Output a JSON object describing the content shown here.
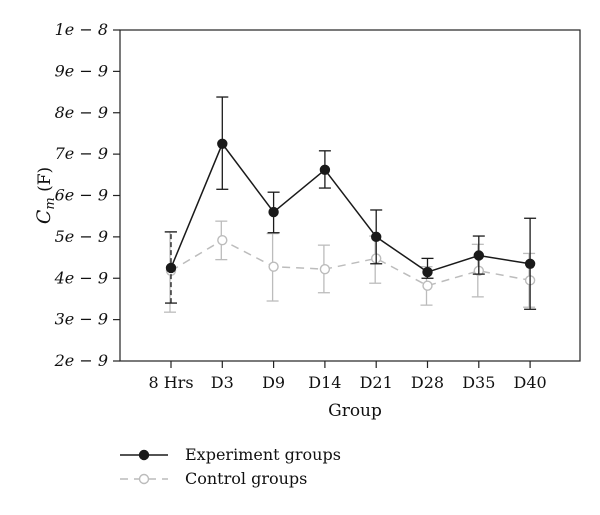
{
  "chart_data": {
    "type": "line",
    "xlabel": "Group",
    "ylabel": "C",
    "ylabel_sub": "m",
    "ylabel_unit": " (F)",
    "categories": [
      "8 Hrs",
      "D3",
      "D9",
      "D14",
      "D21",
      "D28",
      "D35",
      "D40"
    ],
    "ylim": [
      2e-09,
      1e-08
    ],
    "yticks": [
      {
        "value": 2e-09,
        "label": "2e − 9"
      },
      {
        "value": 3e-09,
        "label": "3e − 9"
      },
      {
        "value": 4e-09,
        "label": "4e − 9"
      },
      {
        "value": 5e-09,
        "label": "5e − 9"
      },
      {
        "value": 6e-09,
        "label": "6e − 9"
      },
      {
        "value": 7e-09,
        "label": "7e − 9"
      },
      {
        "value": 8e-09,
        "label": "8e − 9"
      },
      {
        "value": 9e-09,
        "label": "9e − 9"
      },
      {
        "value": 1e-08,
        "label": "1e − 8"
      }
    ],
    "grid": false,
    "legend_position": "bottom-left",
    "series": [
      {
        "name": "Experiment groups",
        "color": "#1a1a1a",
        "marker": "filled-circle",
        "line": "solid",
        "values": [
          4.25e-09,
          7.25e-09,
          5.6e-09,
          6.62e-09,
          5e-09,
          4.15e-09,
          4.55e-09,
          4.35e-09
        ],
        "err_low": [
          3.4e-09,
          6.15e-09,
          5.1e-09,
          6.18e-09,
          4.35e-09,
          4e-09,
          4.1e-09,
          3.25e-09
        ],
        "err_high": [
          5.12e-09,
          8.38e-09,
          6.08e-09,
          7.08e-09,
          5.65e-09,
          4.48e-09,
          5.02e-09,
          5.45e-09
        ]
      },
      {
        "name": "Control groups",
        "color": "#bcbcbc",
        "marker": "open-circle",
        "line": "dashed",
        "values": [
          4.18e-09,
          4.92e-09,
          4.28e-09,
          4.22e-09,
          4.48e-09,
          3.82e-09,
          4.18e-09,
          3.95e-09
        ],
        "err_low": [
          3.18e-09,
          4.45e-09,
          3.45e-09,
          3.65e-09,
          3.88e-09,
          3.35e-09,
          3.55e-09,
          3.3e-09
        ],
        "err_high": [
          5.12e-09,
          5.38e-09,
          5.08e-09,
          4.8e-09,
          5.02e-09,
          4.28e-09,
          4.82e-09,
          4.6e-09
        ]
      }
    ]
  }
}
